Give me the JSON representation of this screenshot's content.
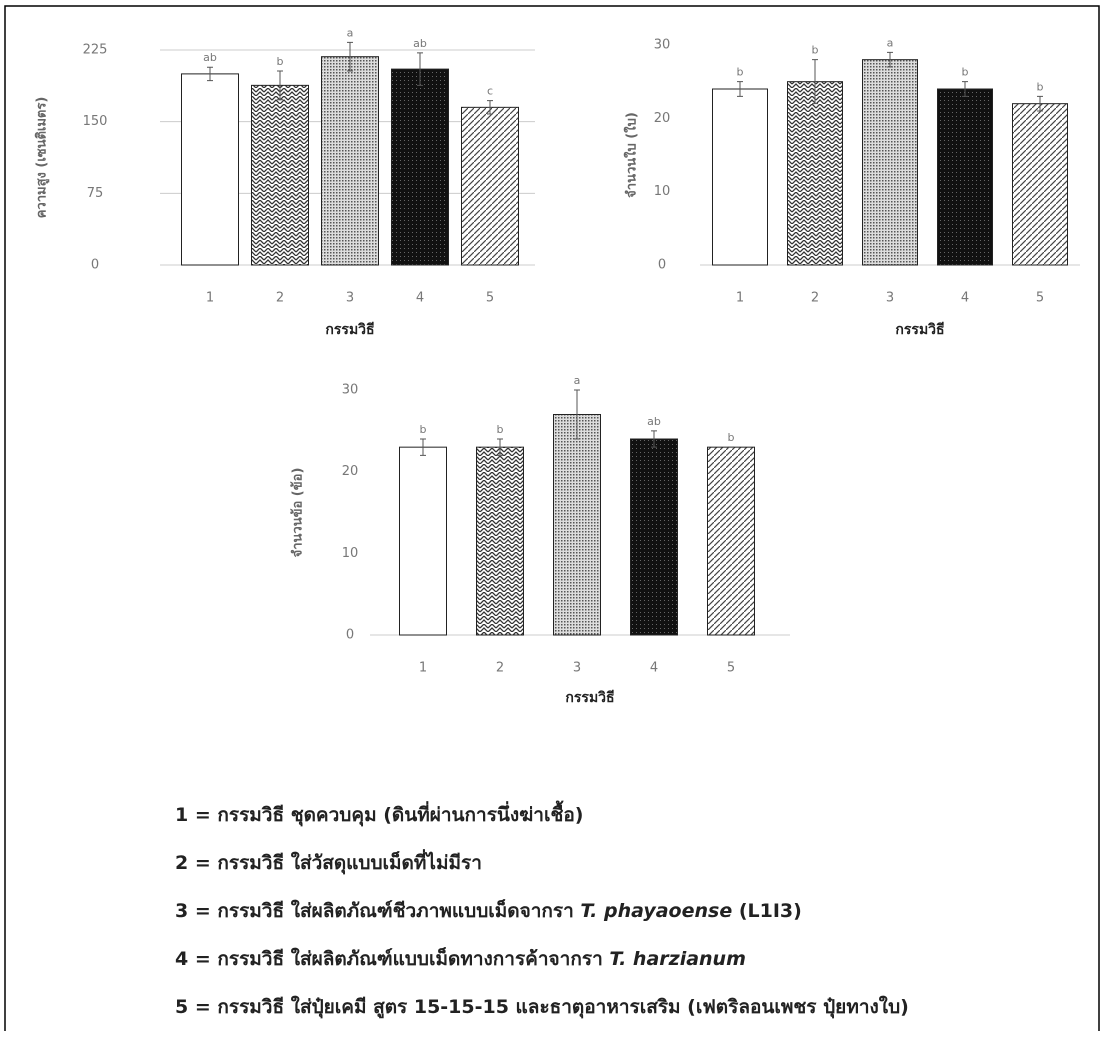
{
  "chart_data": [
    {
      "type": "bar",
      "y_label": "ความสูง (เซนติเมตร)",
      "x_label": "กรรมวิธี",
      "categories": [
        "1",
        "2",
        "3",
        "4",
        "5"
      ],
      "values": [
        200,
        188,
        218,
        205,
        165
      ],
      "errors": [
        7,
        15,
        15,
        17,
        7
      ],
      "annotations": [
        "ab",
        "b",
        "a",
        "ab",
        "c"
      ],
      "fills": [
        "white",
        "zigzag",
        "dots",
        "black",
        "hatch"
      ],
      "ylim": [
        0,
        225
      ],
      "yticks": [
        0,
        75,
        150,
        225
      ],
      "grid": true
    },
    {
      "type": "bar",
      "y_label": "จำนวนใบ (ใบ)",
      "x_label": "กรรมวิธี",
      "categories": [
        "1",
        "2",
        "3",
        "4",
        "5"
      ],
      "values": [
        24,
        25,
        28,
        24,
        22
      ],
      "errors": [
        1,
        3,
        1,
        1,
        1
      ],
      "annotations": [
        "b",
        "b",
        "a",
        "b",
        "b"
      ],
      "fills": [
        "white",
        "zigzag",
        "dots",
        "black",
        "hatch"
      ],
      "ylim": [
        0,
        30
      ],
      "yticks": [
        0,
        10,
        20,
        30
      ],
      "grid": false
    },
    {
      "type": "bar",
      "y_label": "จำนวนข้อ (ข้อ)",
      "x_label": "กรรมวิธี",
      "categories": [
        "1",
        "2",
        "3",
        "4",
        "5"
      ],
      "values": [
        23,
        23,
        27,
        24,
        23
      ],
      "errors": [
        1,
        1,
        3,
        1,
        0
      ],
      "annotations": [
        "b",
        "b",
        "a",
        "ab",
        "b"
      ],
      "fills": [
        "white",
        "zigzag",
        "dots",
        "black",
        "hatch"
      ],
      "ylim": [
        0,
        30
      ],
      "yticks": [
        0,
        10,
        20,
        30
      ],
      "grid": false
    }
  ],
  "notes": [
    [
      "1 = กรรมวิธี ชุดควบคุม (ดินที่ผ่านการนึ่งฆ่าเชื้อ)"
    ],
    [
      "2 = กรรมวิธี ใส่วัสดุแบบเม็ดที่ไม่มีรา"
    ],
    [
      "3 = กรรมวิธี ใส่ผลิตภัณฑ์ชีวภาพแบบเม็ดจากรา ",
      "T. phayaoense",
      " (L1I3)"
    ],
    [
      "4 = กรรมวิธี ใส่ผลิตภัณฑ์แบบเม็ดทางการค้าจากรา ",
      "T. harzianum"
    ],
    [
      "5 = กรรมวิธี ใส่ปุ๋ยเคมี สูตร 15-15-15 และธาตุอาหารเสริม (เฟตริลอนเพชร ปุ๋ยทางใบ)"
    ]
  ]
}
